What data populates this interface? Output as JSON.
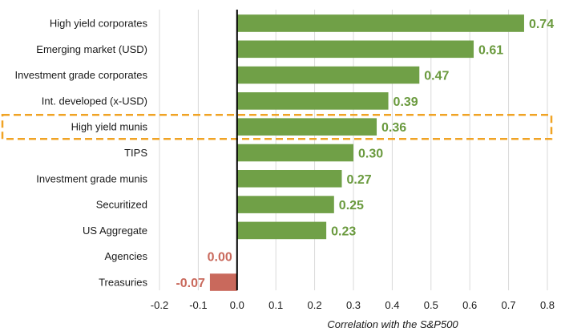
{
  "chart_data": {
    "type": "bar",
    "orientation": "horizontal",
    "categories": [
      "High yield corporates",
      "Emerging market (USD)",
      "Investment grade corporates",
      "Int. developed (x-USD)",
      "High yield munis",
      "TIPS",
      "Investment grade munis",
      "Securitized",
      "US Aggregate",
      "Agencies",
      "Treasuries"
    ],
    "values": [
      0.74,
      0.61,
      0.47,
      0.39,
      0.36,
      0.3,
      0.27,
      0.25,
      0.23,
      0.0,
      -0.07
    ],
    "value_labels": [
      "0.74",
      "0.61",
      "0.47",
      "0.39",
      "0.36",
      "0.30",
      "0.27",
      "0.25",
      "0.23",
      "0.00",
      "-0.07"
    ],
    "xlabel": "Correlation with the S&P500",
    "ylabel": "",
    "title": "",
    "xlim": [
      -0.2,
      0.8
    ],
    "xticks": [
      -0.2,
      -0.1,
      0.0,
      0.1,
      0.2,
      0.3,
      0.4,
      0.5,
      0.6,
      0.7,
      0.8
    ],
    "xtick_labels": [
      "-0.2",
      "-0.1",
      "0.0",
      "0.1",
      "0.2",
      "0.3",
      "0.4",
      "0.5",
      "0.6",
      "0.7",
      "0.8"
    ],
    "highlighted_category": "High yield munis",
    "grid": "vertical",
    "colors": {
      "positive": "#70a047",
      "negative": "#c9695c",
      "positive_text": "#6a9a3e",
      "negative_text": "#c9695c",
      "highlight": "#f0a324",
      "grid": "#d9d9d9",
      "axis": "#000000"
    }
  }
}
